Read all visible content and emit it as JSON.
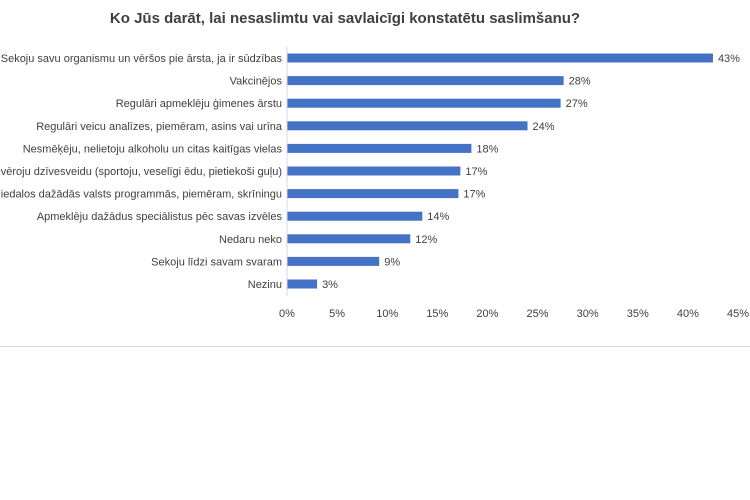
{
  "chart_data": {
    "type": "bar",
    "orientation": "horizontal",
    "title": "Ko Jūs darāt, lai nesaslimtu vai savlaicīgi konstatētu saslimšanu?",
    "categories": [
      "Sekoju savu organismu un vēršos pie ārsta, ja ir sūdzības",
      "Vakcinējos",
      "Regulāri apmeklēju ģimenes ārstu",
      "Regulāri veicu analīzes, piemēram, asins vai urīna",
      "Nesmēķēju, nelietoju alkoholu un citas kaitīgas vielas",
      "Ievēroju dzīvesveidu (sportoju, veselīgi ēdu, pietiekoši guļu)",
      "Piedalos dažādās valsts programmās, piemēram, skrīningu",
      "Apmeklēju dažādus speciālistus pēc savas izvēles",
      "Nedaru neko",
      "Sekoju līdzi savam svaram",
      "Nezinu"
    ],
    "values": [
      42.5,
      27.6,
      27.3,
      24.0,
      18.4,
      17.3,
      17.1,
      13.5,
      12.3,
      9.2,
      3.0
    ],
    "data_labels": [
      "43%",
      "28%",
      "27%",
      "24%",
      "18%",
      "17%",
      "17%",
      "14%",
      "12%",
      "9%",
      "3%"
    ],
    "xlim": [
      0,
      45
    ],
    "x_ticks": [
      "0%",
      "5%",
      "10%",
      "15%",
      "20%",
      "25%",
      "30%",
      "35%",
      "40%",
      "45%"
    ],
    "grid": false,
    "legend": "none",
    "bar_color": "#4472c4"
  }
}
